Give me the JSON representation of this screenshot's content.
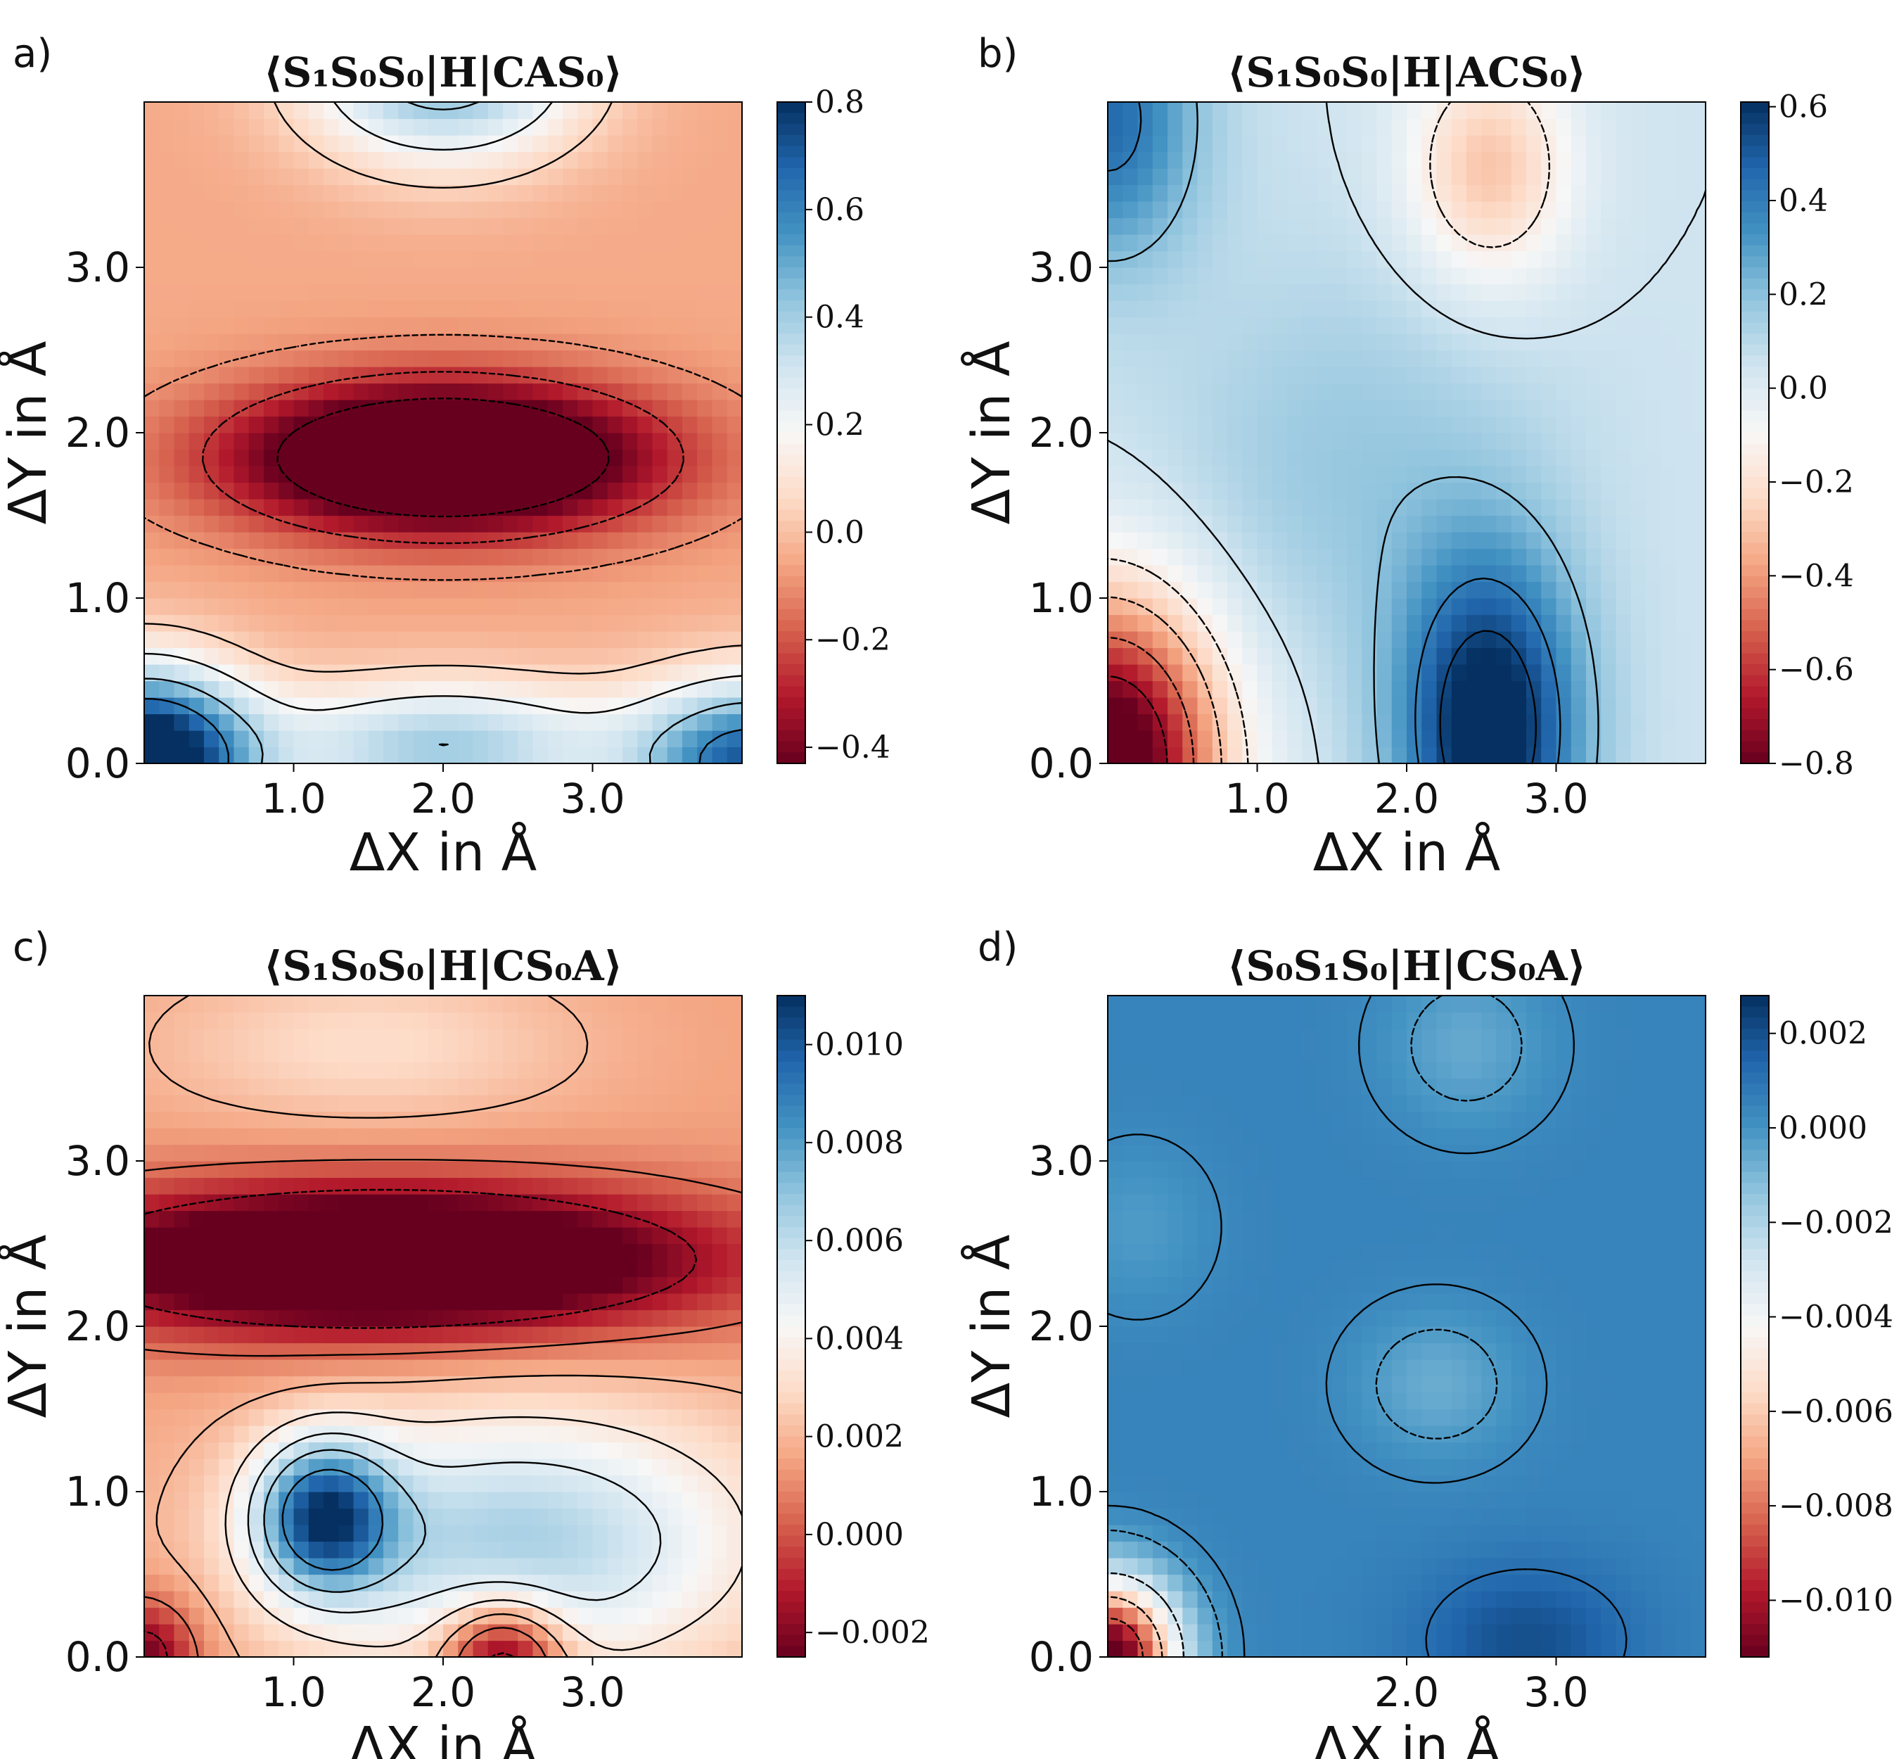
{
  "figure": {
    "colormap": {
      "name": "RdBu",
      "low": "#67001f",
      "mid": "#f7f7f7",
      "high": "#053061"
    }
  },
  "chart_data": [
    {
      "panel": "a)",
      "type": "heatmap",
      "title": "⟨S₁S₀S₀|H|CAS₀⟩",
      "xlabel": "ΔX in Å",
      "ylabel": "ΔY in Å",
      "xlim": [
        0.0,
        4.0
      ],
      "ylim": [
        0.0,
        4.0
      ],
      "xticks": [
        "1.0",
        "2.0",
        "3.0"
      ],
      "yticks": [
        "0.0",
        "1.0",
        "2.0",
        "3.0"
      ],
      "colorbar": {
        "min": -0.43,
        "max": 0.8,
        "ticks": [
          "0.8",
          "0.6",
          "0.4",
          "0.2",
          "0.0",
          "−0.2",
          "−0.4"
        ]
      },
      "features": [
        {
          "x": 2.0,
          "y": 4.2,
          "sx": 0.9,
          "sy": 0.55,
          "amp": 0.55
        },
        {
          "x": 2.0,
          "y": 1.85,
          "sx": 1.4,
          "sy": 0.45,
          "amp": -0.75
        },
        {
          "x": 0.0,
          "y": 0.0,
          "sx": 0.7,
          "sy": 0.55,
          "amp": 1.05
        },
        {
          "x": 4.1,
          "y": 0.0,
          "sx": 0.8,
          "sy": 0.5,
          "amp": 0.75
        },
        {
          "x": 2.0,
          "y": 0.1,
          "sx": 1.2,
          "sy": 0.4,
          "amp": 0.45
        }
      ],
      "base": -0.05,
      "contour_levels": [
        -0.45,
        -0.25,
        -0.1,
        0.05,
        0.2,
        0.4,
        0.6
      ]
    },
    {
      "panel": "b)",
      "type": "heatmap",
      "title": "⟨S₁S₀S₀|H|ACS₀⟩",
      "xlabel": "ΔX in Å",
      "ylabel": "ΔY in Å",
      "xlim": [
        0.0,
        4.0
      ],
      "ylim": [
        0.0,
        4.0
      ],
      "xticks": [
        "1.0",
        "2.0",
        "3.0"
      ],
      "yticks": [
        "0.0",
        "1.0",
        "2.0",
        "3.0"
      ],
      "colorbar": {
        "min": -0.8,
        "max": 0.61,
        "ticks": [
          "0.6",
          "0.4",
          "0.2",
          "0.0",
          "−0.2",
          "−0.4",
          "−0.6",
          "−0.8"
        ]
      },
      "features": [
        {
          "x": 0.0,
          "y": 0.0,
          "sx": 0.75,
          "sy": 1.0,
          "amp": -1.0
        },
        {
          "x": 2.55,
          "y": 0.2,
          "sx": 0.6,
          "sy": 1.05,
          "amp": 0.65
        },
        {
          "x": 2.55,
          "y": 3.6,
          "sx": 0.55,
          "sy": 0.7,
          "amp": -0.35
        },
        {
          "x": 0.0,
          "y": 3.9,
          "sx": 0.6,
          "sy": 0.85,
          "amp": 0.4
        },
        {
          "x": 1.6,
          "y": 1.8,
          "sx": 1.2,
          "sy": 1.2,
          "amp": 0.12
        }
      ],
      "base": 0.05,
      "contour_levels": [
        -0.7,
        -0.5,
        -0.3,
        -0.15,
        0.05,
        0.2,
        0.4,
        0.55
      ]
    },
    {
      "panel": "c)",
      "type": "heatmap",
      "title": "⟨S₁S₀S₀|H|CS₀A⟩",
      "xlabel": "ΔX in Å",
      "ylabel": "ΔY in Å",
      "xlim": [
        0.0,
        4.0
      ],
      "ylim": [
        0.0,
        4.0
      ],
      "xticks": [
        "1.0",
        "2.0",
        "3.0"
      ],
      "yticks": [
        "0.0",
        "1.0",
        "2.0",
        "3.0"
      ],
      "colorbar": {
        "min": -0.0025,
        "max": 0.011,
        "ticks": [
          "0.010",
          "0.008",
          "0.006",
          "0.004",
          "0.002",
          "0.000",
          "−0.002"
        ]
      },
      "features": [
        {
          "x": 1.6,
          "y": 2.4,
          "sx": 2.2,
          "sy": 0.45,
          "amp": -0.0075
        },
        {
          "x": 1.2,
          "y": 0.85,
          "sx": 0.45,
          "sy": 0.45,
          "amp": 0.0075
        },
        {
          "x": 2.4,
          "y": 0.0,
          "sx": 0.4,
          "sy": 0.35,
          "amp": -0.0055
        },
        {
          "x": 0.0,
          "y": 0.0,
          "sx": 0.35,
          "sy": 0.35,
          "amp": -0.004
        },
        {
          "x": 2.5,
          "y": 0.7,
          "sx": 1.6,
          "sy": 0.8,
          "amp": 0.005
        },
        {
          "x": 1.5,
          "y": 3.7,
          "sx": 1.4,
          "sy": 0.5,
          "amp": 0.0015
        }
      ],
      "base": 0.0015,
      "contour_levels": [
        -0.0015,
        0.0005,
        0.002,
        0.0035,
        0.005,
        0.0065,
        0.0085
      ]
    },
    {
      "panel": "d)",
      "type": "heatmap",
      "title": "⟨S₀S₁S₀|H|CS₀A⟩",
      "xlabel": "ΔX in Å",
      "ylabel": "ΔY in Å",
      "xlim": [
        0.0,
        4.0
      ],
      "ylim": [
        0.0,
        4.0
      ],
      "xticks": [
        "2.0",
        "3.0"
      ],
      "yticks": [
        "0.0",
        "1.0",
        "2.0",
        "3.0"
      ],
      "colorbar": {
        "min": -0.0112,
        "max": 0.0028,
        "ticks": [
          "0.002",
          "0.000",
          "−0.002",
          "−0.004",
          "−0.006",
          "−0.008",
          "−0.010"
        ]
      },
      "features": [
        {
          "x": 0.0,
          "y": 0.0,
          "sx": 0.45,
          "sy": 0.45,
          "amp": -0.0125
        },
        {
          "x": 2.8,
          "y": 0.1,
          "sx": 0.7,
          "sy": 0.45,
          "amp": 0.0015
        },
        {
          "x": 2.2,
          "y": 1.65,
          "sx": 0.55,
          "sy": 0.45,
          "amp": -0.0012
        },
        {
          "x": 2.4,
          "y": 3.7,
          "sx": 0.55,
          "sy": 0.5,
          "amp": -0.0011
        },
        {
          "x": 0.2,
          "y": 2.6,
          "sx": 0.5,
          "sy": 0.5,
          "amp": -0.0007
        }
      ],
      "base": 0.0005,
      "contour_levels": [
        -0.009,
        -0.006,
        -0.003,
        -0.0002,
        0.0003,
        0.0011
      ]
    }
  ]
}
